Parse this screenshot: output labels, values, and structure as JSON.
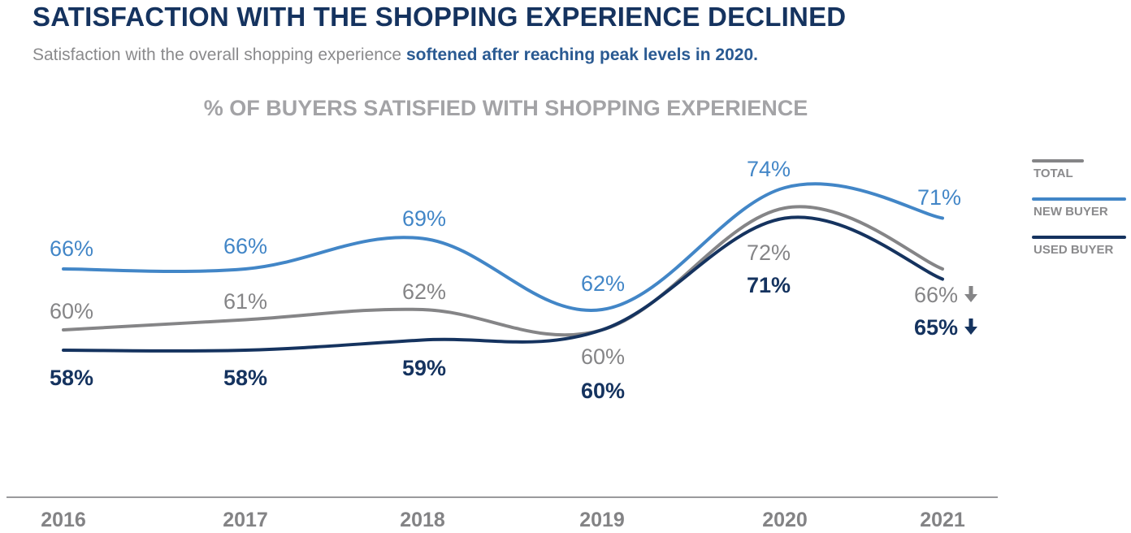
{
  "header": {
    "title": "SATISFACTION WITH THE SHOPPING EXPERIENCE DECLINED",
    "subtitle_plain": "Satisfaction with the overall shopping experience ",
    "subtitle_bold": "softened after reaching peak levels in 2020."
  },
  "chart_data": {
    "type": "line",
    "title": "% OF BUYERS SATISFIED WITH SHOPPING EXPERIENCE",
    "xlabel": "",
    "ylabel": "",
    "x": [
      "2016",
      "2017",
      "2018",
      "2019",
      "2020",
      "2021"
    ],
    "series": [
      {
        "name": "TOTAL",
        "color": "#858587",
        "values": [
          60,
          61,
          62,
          60,
          72,
          66
        ],
        "labels": [
          "60%",
          "61%",
          "62%",
          "60%",
          "72%",
          "66%"
        ],
        "final_trend": "down"
      },
      {
        "name": "NEW BUYER",
        "color": "#4286c7",
        "values": [
          66,
          66,
          69,
          62,
          74,
          71
        ],
        "labels": [
          "66%",
          "66%",
          "69%",
          "62%",
          "74%",
          "71%"
        ]
      },
      {
        "name": "USED BUYER",
        "color": "#15335f",
        "values": [
          58,
          58,
          59,
          60,
          71,
          65
        ],
        "labels": [
          "58%",
          "58%",
          "59%",
          "60%",
          "71%",
          "65%"
        ],
        "final_trend": "down"
      }
    ],
    "grid": false,
    "legend_position": "right",
    "smooth": true
  },
  "legend": {
    "items": [
      {
        "label": "TOTAL",
        "color": "#858587"
      },
      {
        "label": "NEW BUYER",
        "color": "#4286c7"
      },
      {
        "label": "USED BUYER",
        "color": "#15335f"
      }
    ]
  },
  "icons": {
    "trend_down": "arrow-down-icon"
  }
}
